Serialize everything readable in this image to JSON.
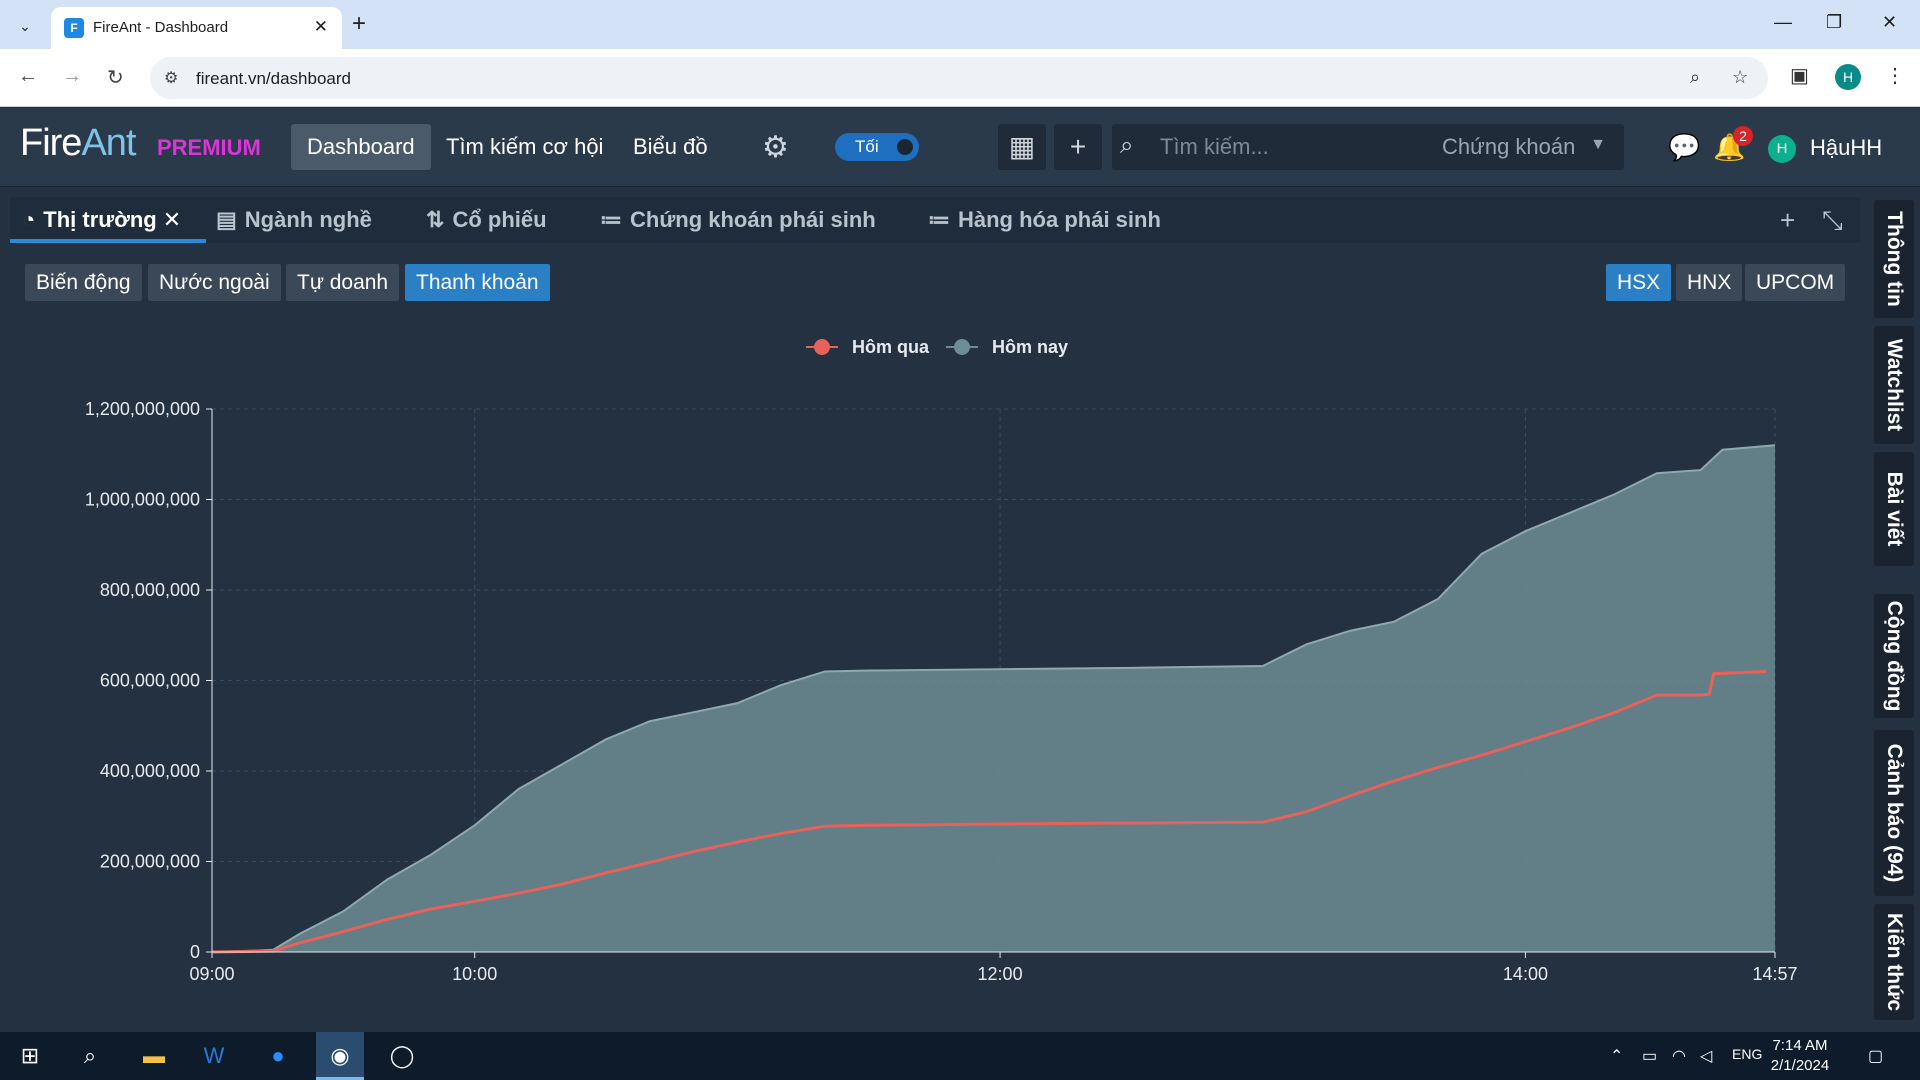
{
  "browser": {
    "tab_title": "FireAnt - Dashboard",
    "url": "fireant.vn/dashboard",
    "profile_initial": "H"
  },
  "app": {
    "logo_fire": "Fire",
    "logo_ant": "Ant",
    "premium": "PREMIUM",
    "nav": [
      "Dashboard",
      "Tìm kiếm cơ hội",
      "Biểu đồ"
    ],
    "theme_toggle": "Tối",
    "search_placeholder": "Tìm kiếm...",
    "search_category": "Chứng khoán",
    "notification_count": "2",
    "user_initial": "H",
    "user_name": "HậuHH"
  },
  "panel_tabs": [
    {
      "label": "Thị trường",
      "icon": "pie-chart-icon",
      "active": true
    },
    {
      "label": "Ngành nghề",
      "icon": "list-icon"
    },
    {
      "label": "Cổ phiếu",
      "icon": "sort-icon"
    },
    {
      "label": "Chứng khoán phái sinh",
      "icon": "numbered-list-icon"
    },
    {
      "label": "Hàng hóa phái sinh",
      "icon": "numbered-list-icon"
    }
  ],
  "sub_tabs": [
    "Biến động",
    "Nước ngoài",
    "Tự doanh",
    "Thanh khoản"
  ],
  "sub_tab_active": "Thanh khoản",
  "exchanges": [
    "HSX",
    "HNX",
    "UPCOM"
  ],
  "exchange_active": "HSX",
  "side_tabs": [
    "Thông tin",
    "Watchlist",
    "Bài viết",
    "Cộng đồng",
    "Cảnh báo (94)",
    "Kiến thức"
  ],
  "taskbar": {
    "lang": "ENG",
    "time": "7:14 AM",
    "date": "2/1/2024"
  },
  "chart_data": {
    "type": "area",
    "title": "",
    "xlabel": "",
    "ylabel": "",
    "x_ticks": [
      "09:00",
      "10:00",
      "12:00",
      "14:00",
      "14:57"
    ],
    "y_ticks": [
      "0",
      "200,000,000",
      "400,000,000",
      "600,000,000",
      "800,000,000",
      "1,000,000,000",
      "1,200,000,000"
    ],
    "ylim": [
      0,
      1200000000
    ],
    "xlim_minutes": [
      540,
      897
    ],
    "legend_position": "top-center",
    "grid": true,
    "series": [
      {
        "name": "Hôm qua",
        "color": "#e8615a",
        "x": [
          "09:00",
          "09:14",
          "09:20",
          "09:30",
          "09:40",
          "09:50",
          "10:00",
          "10:10",
          "10:20",
          "10:30",
          "10:40",
          "10:50",
          "11:00",
          "11:10",
          "11:20",
          "11:30",
          "12:00",
          "12:30",
          "13:00",
          "13:10",
          "13:20",
          "13:30",
          "13:40",
          "13:50",
          "14:00",
          "14:10",
          "14:20",
          "14:30",
          "14:40",
          "14:42",
          "14:43",
          "14:55"
        ],
        "y": [
          0,
          2000000,
          20000000,
          45000000,
          72000000,
          95000000,
          112000000,
          130000000,
          150000000,
          175000000,
          198000000,
          222000000,
          243000000,
          262000000,
          278000000,
          280000000,
          283000000,
          285000000,
          287000000,
          310000000,
          345000000,
          378000000,
          408000000,
          435000000,
          465000000,
          495000000,
          528000000,
          568000000,
          568000000,
          570000000,
          615000000,
          620000000
        ]
      },
      {
        "name": "Hôm nay",
        "color": "#6d8c94",
        "x": [
          "09:00",
          "09:10",
          "09:14",
          "09:20",
          "09:30",
          "09:40",
          "09:50",
          "10:00",
          "10:10",
          "10:20",
          "10:30",
          "10:40",
          "10:50",
          "11:00",
          "11:10",
          "11:20",
          "11:30",
          "12:00",
          "12:30",
          "13:00",
          "13:10",
          "13:20",
          "13:30",
          "13:40",
          "13:50",
          "14:00",
          "14:10",
          "14:20",
          "14:30",
          "14:40",
          "14:45",
          "14:57"
        ],
        "y": [
          0,
          3000000,
          5000000,
          40000000,
          90000000,
          160000000,
          215000000,
          280000000,
          360000000,
          415000000,
          470000000,
          510000000,
          530000000,
          550000000,
          590000000,
          620000000,
          622000000,
          625000000,
          628000000,
          632000000,
          680000000,
          710000000,
          730000000,
          780000000,
          880000000,
          930000000,
          970000000,
          1010000000,
          1058000000,
          1065000000,
          1110000000,
          1120000000
        ]
      }
    ]
  }
}
